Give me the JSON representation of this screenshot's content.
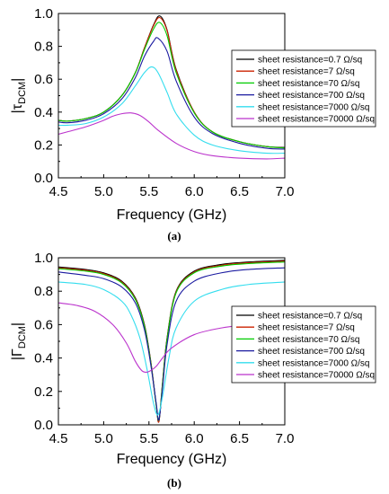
{
  "chart_data": [
    {
      "type": "line",
      "panel_label": "(a)",
      "xlabel": "Frequency (GHz)",
      "ylabel_symbol": "τ",
      "ylabel_sub": "DCM",
      "xlim": [
        4.5,
        7.0
      ],
      "ylim": [
        0.0,
        1.0
      ],
      "xticks": [
        "4.5",
        "5.0",
        "5.5",
        "6.0",
        "6.5",
        "7.0"
      ],
      "yticks": [
        "0.0",
        "0.2",
        "0.4",
        "0.6",
        "0.8",
        "1.0"
      ],
      "legend_position": "right",
      "series": [
        {
          "name": "sheet resistance=0.7 Ω/sq",
          "color": "#000000",
          "x": [
            4.5,
            4.6,
            4.8,
            5.0,
            5.2,
            5.35,
            5.45,
            5.55,
            5.62,
            5.7,
            5.8,
            6.0,
            6.2,
            6.5,
            6.8,
            7.0
          ],
          "y": [
            0.35,
            0.345,
            0.36,
            0.4,
            0.5,
            0.64,
            0.79,
            0.93,
            0.985,
            0.9,
            0.66,
            0.4,
            0.28,
            0.22,
            0.19,
            0.185
          ]
        },
        {
          "name": "sheet resistance=7 Ω/sq",
          "color": "#cc2200",
          "x": [
            4.5,
            4.6,
            4.8,
            5.0,
            5.2,
            5.35,
            5.45,
            5.55,
            5.62,
            5.7,
            5.8,
            6.0,
            6.2,
            6.5,
            6.8,
            7.0
          ],
          "y": [
            0.35,
            0.345,
            0.36,
            0.4,
            0.5,
            0.64,
            0.79,
            0.925,
            0.975,
            0.895,
            0.655,
            0.4,
            0.28,
            0.22,
            0.19,
            0.183
          ]
        },
        {
          "name": "sheet resistance=70 Ω/sq",
          "color": "#00cc00",
          "x": [
            4.5,
            4.6,
            4.8,
            5.0,
            5.2,
            5.35,
            5.45,
            5.55,
            5.62,
            5.7,
            5.8,
            6.0,
            6.2,
            6.5,
            6.8,
            7.0
          ],
          "y": [
            0.35,
            0.345,
            0.36,
            0.4,
            0.5,
            0.64,
            0.78,
            0.905,
            0.945,
            0.865,
            0.64,
            0.395,
            0.28,
            0.22,
            0.19,
            0.182
          ]
        },
        {
          "name": "sheet resistance=700 Ω/sq",
          "color": "#1a1aa0",
          "x": [
            4.5,
            4.6,
            4.8,
            5.0,
            5.2,
            5.35,
            5.45,
            5.55,
            5.6,
            5.7,
            5.8,
            6.0,
            6.2,
            6.5,
            6.8,
            7.0
          ],
          "y": [
            0.34,
            0.335,
            0.35,
            0.39,
            0.48,
            0.61,
            0.74,
            0.83,
            0.85,
            0.77,
            0.59,
            0.37,
            0.27,
            0.21,
            0.18,
            0.175
          ]
        },
        {
          "name": "sheet resistance=7000 Ω/sq",
          "color": "#33ddee",
          "x": [
            4.5,
            4.6,
            4.8,
            5.0,
            5.2,
            5.35,
            5.45,
            5.53,
            5.6,
            5.7,
            5.8,
            6.0,
            6.2,
            6.5,
            6.8,
            7.0
          ],
          "y": [
            0.32,
            0.32,
            0.33,
            0.37,
            0.45,
            0.56,
            0.64,
            0.675,
            0.64,
            0.52,
            0.39,
            0.26,
            0.2,
            0.165,
            0.15,
            0.15
          ]
        },
        {
          "name": "sheet resistance=70000 Ω/sq",
          "color": "#bb33cc",
          "x": [
            4.5,
            4.6,
            4.8,
            5.0,
            5.1,
            5.2,
            5.3,
            5.4,
            5.5,
            5.6,
            5.8,
            6.0,
            6.2,
            6.5,
            6.8,
            7.0
          ],
          "y": [
            0.265,
            0.28,
            0.31,
            0.35,
            0.375,
            0.39,
            0.395,
            0.38,
            0.34,
            0.29,
            0.21,
            0.16,
            0.135,
            0.12,
            0.115,
            0.12
          ]
        }
      ]
    },
    {
      "type": "line",
      "panel_label": "(b)",
      "xlabel": "Frequency (GHz)",
      "ylabel_symbol": "Γ",
      "ylabel_sub": "DCM",
      "xlim": [
        4.5,
        7.0
      ],
      "ylim": [
        0.0,
        1.0
      ],
      "xticks": [
        "4.5",
        "5.0",
        "5.5",
        "6.0",
        "6.5",
        "7.0"
      ],
      "yticks": [
        "0.0",
        "0.2",
        "0.4",
        "0.6",
        "0.8",
        "1.0"
      ],
      "legend_position": "right",
      "series": [
        {
          "name": "sheet resistance=0.7 Ω/sq",
          "color": "#000000",
          "x": [
            4.5,
            4.8,
            5.0,
            5.2,
            5.35,
            5.45,
            5.52,
            5.58,
            5.61,
            5.65,
            5.7,
            5.8,
            6.0,
            6.3,
            6.6,
            7.0
          ],
          "y": [
            0.945,
            0.93,
            0.91,
            0.86,
            0.76,
            0.6,
            0.38,
            0.12,
            0.02,
            0.25,
            0.52,
            0.8,
            0.92,
            0.96,
            0.975,
            0.985
          ]
        },
        {
          "name": "sheet resistance=7 Ω/sq",
          "color": "#cc2200",
          "x": [
            4.5,
            4.8,
            5.0,
            5.2,
            5.35,
            5.45,
            5.52,
            5.58,
            5.61,
            5.65,
            5.7,
            5.8,
            6.0,
            6.3,
            6.6,
            7.0
          ],
          "y": [
            0.94,
            0.925,
            0.905,
            0.855,
            0.755,
            0.595,
            0.375,
            0.12,
            0.02,
            0.25,
            0.515,
            0.795,
            0.915,
            0.955,
            0.97,
            0.98
          ]
        },
        {
          "name": "sheet resistance=70 Ω/sq",
          "color": "#00cc00",
          "x": [
            4.5,
            4.8,
            5.0,
            5.2,
            5.35,
            5.45,
            5.52,
            5.58,
            5.61,
            5.65,
            5.7,
            5.8,
            6.0,
            6.3,
            6.6,
            7.0
          ],
          "y": [
            0.935,
            0.92,
            0.9,
            0.85,
            0.75,
            0.59,
            0.37,
            0.12,
            0.03,
            0.24,
            0.51,
            0.79,
            0.91,
            0.95,
            0.965,
            0.975
          ]
        },
        {
          "name": "sheet resistance=700 Ω/sq",
          "color": "#1a1aa0",
          "x": [
            4.5,
            4.8,
            5.0,
            5.2,
            5.35,
            5.45,
            5.52,
            5.58,
            5.61,
            5.65,
            5.7,
            5.8,
            6.0,
            6.3,
            6.6,
            7.0
          ],
          "y": [
            0.915,
            0.895,
            0.875,
            0.825,
            0.73,
            0.57,
            0.36,
            0.13,
            0.03,
            0.22,
            0.48,
            0.74,
            0.86,
            0.91,
            0.93,
            0.94
          ]
        },
        {
          "name": "sheet resistance=7000 Ω/sq",
          "color": "#33ddee",
          "x": [
            4.5,
            4.8,
            5.0,
            5.2,
            5.3,
            5.4,
            5.48,
            5.55,
            5.6,
            5.65,
            5.72,
            5.8,
            6.0,
            6.3,
            6.6,
            7.0
          ],
          "y": [
            0.855,
            0.84,
            0.81,
            0.74,
            0.66,
            0.52,
            0.33,
            0.13,
            0.06,
            0.17,
            0.4,
            0.58,
            0.74,
            0.81,
            0.84,
            0.855
          ]
        },
        {
          "name": "sheet resistance=70000 Ω/sq",
          "color": "#bb33cc",
          "x": [
            4.5,
            4.7,
            4.9,
            5.1,
            5.25,
            5.35,
            5.42,
            5.47,
            5.52,
            5.58,
            5.65,
            5.75,
            6.0,
            6.3,
            6.6,
            7.0
          ],
          "y": [
            0.73,
            0.715,
            0.68,
            0.6,
            0.49,
            0.38,
            0.325,
            0.315,
            0.325,
            0.35,
            0.4,
            0.46,
            0.54,
            0.58,
            0.6,
            0.615
          ]
        }
      ]
    }
  ]
}
